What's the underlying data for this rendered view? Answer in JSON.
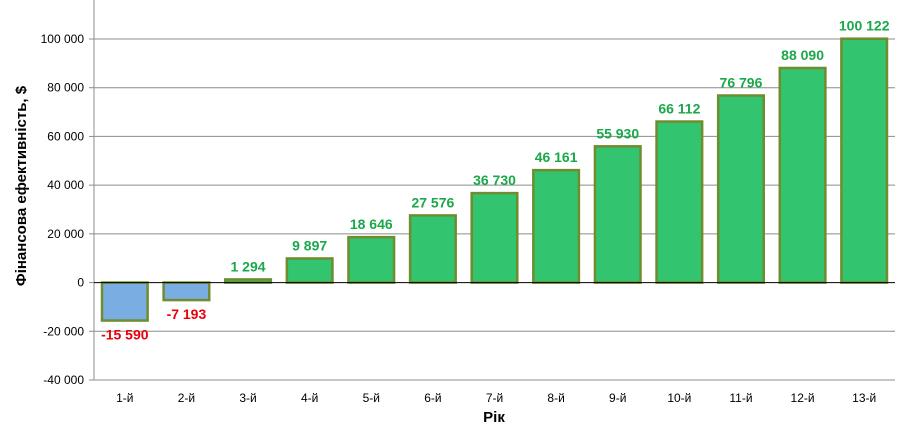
{
  "chart_data": {
    "type": "bar",
    "title": "",
    "xlabel": "Рік",
    "ylabel": "Фінансова ефективність, $",
    "categories": [
      "1-й",
      "2-й",
      "3-й",
      "4-й",
      "5-й",
      "6-й",
      "7-й",
      "8-й",
      "9-й",
      "10-й",
      "11-й",
      "12-й",
      "13-й"
    ],
    "values": [
      -15590,
      -7193,
      1294,
      9897,
      18646,
      27576,
      36730,
      46161,
      55930,
      66112,
      76796,
      88090,
      100122
    ],
    "data_labels": [
      "-15 590",
      "-7 193",
      "1 294",
      "9 897",
      "18 646",
      "27 576",
      "36 730",
      "46 161",
      "55 930",
      "66 112",
      "76 796",
      "88 090",
      "100 122"
    ],
    "ylim": [
      -40000,
      100000
    ],
    "yticks": [
      -40000,
      -20000,
      0,
      20000,
      40000,
      60000,
      80000,
      100000
    ],
    "ytick_labels": [
      "-40 000",
      "-20 000",
      "0",
      "20 000",
      "40 000",
      "60 000",
      "80 000",
      "100 000"
    ],
    "grid": true,
    "legend": "none",
    "colors": {
      "positive_fill": "#33c46f",
      "negative_fill": "#7aaee3",
      "bar_border": "#6f8c2e",
      "positive_label": "#1aa84a",
      "negative_label": "#e8000b",
      "gridline": "#8c8c8c",
      "axis": "#000000"
    }
  }
}
